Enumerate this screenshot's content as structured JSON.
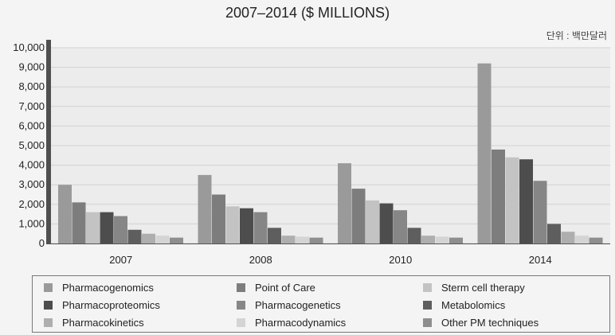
{
  "chart_data": {
    "type": "bar",
    "title": "2007–2014 ($ MILLIONS)",
    "unit_note": "단위 : 백만달러",
    "categories": [
      "2007",
      "2008",
      "2010",
      "2014"
    ],
    "ylim": [
      0,
      10000
    ],
    "yticks": [
      "0",
      "1,000",
      "2,000",
      "3,000",
      "4,000",
      "5,000",
      "6,000",
      "7,000",
      "8,000",
      "9,000",
      "10,000"
    ],
    "grid": true,
    "legend_position": "bottom",
    "series": [
      {
        "name": "Pharmacogenomics",
        "color": "#9a9a9a",
        "values": [
          3000,
          3500,
          4100,
          9200
        ]
      },
      {
        "name": "Point of Care",
        "color": "#7d7d7d",
        "values": [
          2100,
          2500,
          2800,
          4800
        ]
      },
      {
        "name": "Sterm cell therapy",
        "color": "#c3c3c3",
        "values": [
          1600,
          1900,
          2200,
          4400
        ]
      },
      {
        "name": "Pharmacoproteomics",
        "color": "#4d4d4d",
        "values": [
          1600,
          1800,
          2050,
          4300
        ]
      },
      {
        "name": "Pharmacogenetics",
        "color": "#868686",
        "values": [
          1400,
          1600,
          1700,
          3200
        ]
      },
      {
        "name": "Metabolomics",
        "color": "#5e5e5e",
        "values": [
          700,
          800,
          800,
          1000
        ]
      },
      {
        "name": "Pharmacokinetics",
        "color": "#aeaeae",
        "values": [
          500,
          400,
          400,
          600
        ]
      },
      {
        "name": "Pharmacodynamics",
        "color": "#d4d4d4",
        "values": [
          400,
          350,
          350,
          400
        ]
      },
      {
        "name": "Other PM techniques",
        "color": "#8e8e8e",
        "values": [
          300,
          300,
          300,
          300
        ]
      }
    ]
  }
}
